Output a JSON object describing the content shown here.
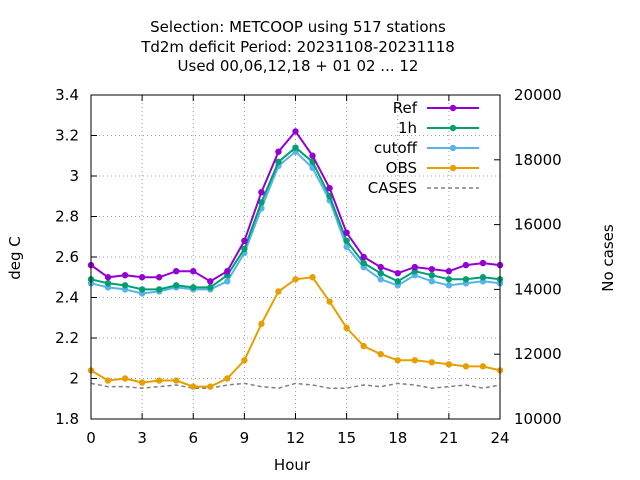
{
  "chart_data": {
    "type": "line",
    "title_lines": [
      "Selection: METCOOP using   517 stations",
      "Td2m deficit   Period: 20231108-20231118",
      "Used  00,06,12,18 + 01 02 ... 12"
    ],
    "xlabel": "Hour",
    "ylabel": "deg C",
    "y2label": "No cases",
    "xlim": [
      0,
      24
    ],
    "ylim": [
      1.8,
      3.4
    ],
    "y2lim": [
      10000,
      20000
    ],
    "xticks": [
      0,
      3,
      6,
      9,
      12,
      15,
      18,
      21,
      24
    ],
    "yticks": [
      "1.8",
      "2",
      "2.2",
      "2.4",
      "2.6",
      "2.8",
      "3",
      "3.2",
      "3.4"
    ],
    "y2ticks": [
      10000,
      12000,
      14000,
      16000,
      18000,
      20000
    ],
    "grid": true,
    "legend_position": "top-right",
    "x": [
      0,
      1,
      2,
      3,
      4,
      5,
      6,
      7,
      8,
      9,
      10,
      11,
      12,
      13,
      14,
      15,
      16,
      17,
      18,
      19,
      20,
      21,
      22,
      23,
      24
    ],
    "series": [
      {
        "name": "Ref",
        "color": "#9400d3",
        "axis": "y1",
        "values": [
          2.56,
          2.5,
          2.51,
          2.5,
          2.5,
          2.53,
          2.53,
          2.48,
          2.53,
          2.68,
          2.92,
          3.12,
          3.22,
          3.1,
          2.94,
          2.72,
          2.6,
          2.55,
          2.52,
          2.55,
          2.54,
          2.53,
          2.56,
          2.57,
          2.56
        ]
      },
      {
        "name": "1h",
        "color": "#009e73",
        "axis": "y1",
        "values": [
          2.49,
          2.47,
          2.46,
          2.44,
          2.44,
          2.46,
          2.45,
          2.45,
          2.51,
          2.64,
          2.87,
          3.07,
          3.14,
          3.07,
          2.9,
          2.68,
          2.57,
          2.52,
          2.48,
          2.53,
          2.51,
          2.49,
          2.49,
          2.5,
          2.49
        ]
      },
      {
        "name": "cutoff",
        "color": "#56b4e9",
        "axis": "y1",
        "values": [
          2.47,
          2.45,
          2.44,
          2.42,
          2.43,
          2.45,
          2.44,
          2.44,
          2.48,
          2.62,
          2.84,
          3.05,
          3.12,
          3.04,
          2.88,
          2.65,
          2.55,
          2.49,
          2.46,
          2.51,
          2.48,
          2.46,
          2.47,
          2.48,
          2.47
        ]
      },
      {
        "name": "OBS",
        "color": "#e69f00",
        "axis": "y1",
        "values": [
          2.04,
          1.99,
          2.0,
          1.98,
          1.99,
          1.99,
          1.96,
          1.96,
          2.0,
          2.09,
          2.27,
          2.43,
          2.49,
          2.5,
          2.38,
          2.25,
          2.16,
          2.12,
          2.09,
          2.09,
          2.08,
          2.07,
          2.06,
          2.06,
          2.04
        ]
      },
      {
        "name": "CASES",
        "color": "#808080",
        "axis": "y2",
        "dashed": true,
        "values": [
          11100,
          11000,
          11000,
          10950,
          11000,
          11050,
          10950,
          10950,
          11050,
          11100,
          11000,
          10950,
          11100,
          11050,
          10950,
          10950,
          11050,
          11000,
          11100,
          11050,
          10950,
          11000,
          11050,
          10950,
          11050
        ]
      }
    ]
  }
}
